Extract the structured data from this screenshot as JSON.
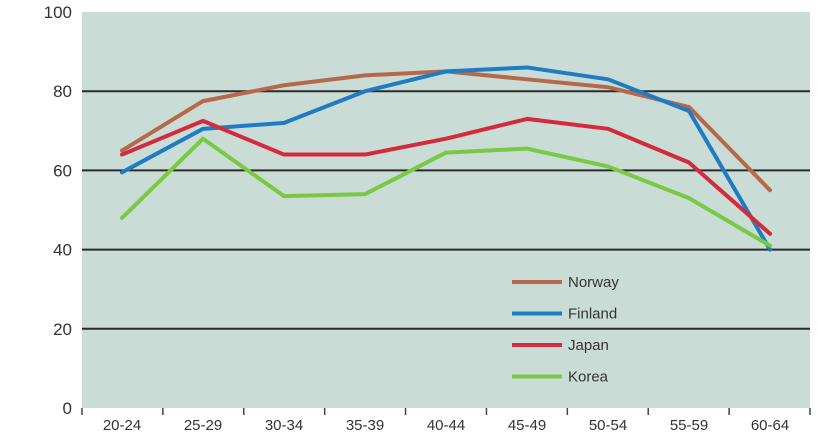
{
  "chart_data": {
    "type": "line",
    "title": "",
    "xlabel": "",
    "ylabel": "",
    "categories": [
      "20-24",
      "25-29",
      "30-34",
      "35-39",
      "40-44",
      "45-49",
      "50-54",
      "55-59",
      "60-64"
    ],
    "ylim": [
      0,
      100
    ],
    "yticks": [
      0,
      20,
      40,
      60,
      80,
      100
    ],
    "grid": true,
    "legend_position": "bottom-right",
    "plot_background": "#c9dcd6",
    "series": [
      {
        "name": "Norway",
        "color": "#b5694a",
        "values": [
          65,
          77.5,
          81.5,
          84,
          85,
          83,
          81,
          76,
          55
        ]
      },
      {
        "name": "Finland",
        "color": "#1f7bc4",
        "values": [
          59.5,
          70.5,
          72,
          80,
          85,
          86,
          83,
          75,
          40
        ]
      },
      {
        "name": "Japan",
        "color": "#d42a3c",
        "values": [
          64,
          72.5,
          64,
          64,
          68,
          73,
          70.5,
          62,
          44
        ]
      },
      {
        "name": "Korea",
        "color": "#7ac943",
        "values": [
          48,
          68,
          53.5,
          54,
          64.5,
          65.5,
          61,
          53,
          41
        ]
      }
    ]
  }
}
